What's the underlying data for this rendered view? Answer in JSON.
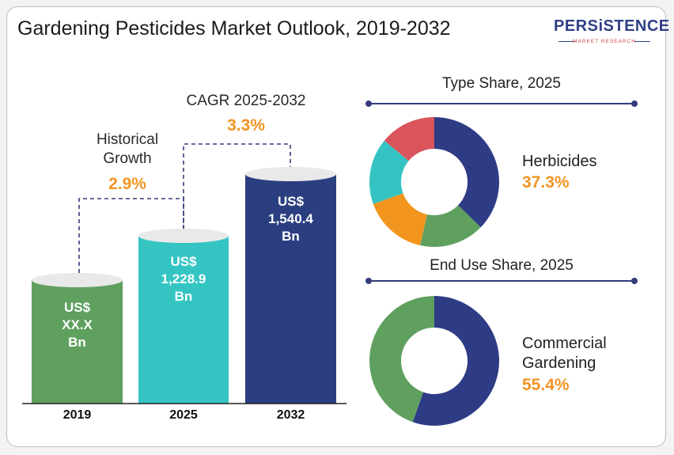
{
  "title": "Gardening Pesticides Market Outlook, 2019-2032",
  "logo": {
    "name": "PERSiSTENCE",
    "tagline": "MARKET RESEARCH"
  },
  "annotations": {
    "historical_label_1": "Historical",
    "historical_label_2": "Growth",
    "historical_value": "2.9%",
    "cagr_label": "CAGR 2025-2032",
    "cagr_value": "3.3%"
  },
  "colors": {
    "bar_2019": "#5fa05f",
    "bar_2025": "#34c5c3",
    "bar_2032": "#2b3f80",
    "accent_orange": "#f29423"
  },
  "chart_data": [
    {
      "type": "bar",
      "title": "",
      "categories": [
        "2019",
        "2025",
        "2032"
      ],
      "values": [
        null,
        1228.9,
        1540.4
      ],
      "value_labels": [
        [
          "US$",
          "XX.X",
          "Bn"
        ],
        [
          "US$",
          "1,228.9",
          "Bn"
        ],
        [
          "US$",
          "1,540.4",
          "Bn"
        ]
      ],
      "xlabel": "",
      "ylabel": ""
    },
    {
      "type": "pie",
      "title": "Type Share, 2025",
      "slices": [
        {
          "value": 37.3,
          "color": "#2e3b85"
        },
        {
          "value": 16.2,
          "color": "#5fa05f"
        },
        {
          "value": 16.0,
          "color": "#f2951e"
        },
        {
          "value": 16.5,
          "color": "#34c3c2"
        },
        {
          "value": 14.0,
          "color": "#d9545b"
        }
      ],
      "highlight": {
        "name": "Herbicides",
        "value": "37.3%"
      }
    },
    {
      "type": "pie",
      "title": "End Use Share, 2025",
      "slices": [
        {
          "value": 55.4,
          "color": "#2e3b85"
        },
        {
          "value": 44.6,
          "color": "#5fa05f"
        }
      ],
      "highlight": {
        "name_line1": "Commercial",
        "name_line2": "Gardening",
        "value": "55.4%"
      }
    }
  ]
}
